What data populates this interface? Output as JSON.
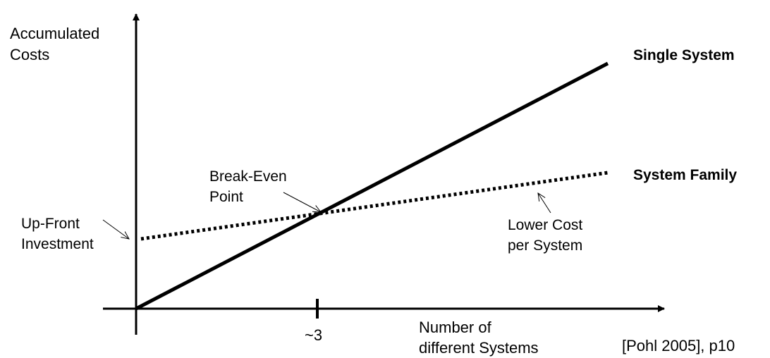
{
  "y_axis_label": [
    "Accumulated",
    "Costs"
  ],
  "x_axis_label": [
    "Number of",
    "different Systems"
  ],
  "x_tick_label": "~3",
  "series": [
    {
      "name": "Single System",
      "style": "solid",
      "color": "#000000"
    },
    {
      "name": "System Family",
      "style": "dotted",
      "color": "#000000"
    }
  ],
  "annotations": {
    "break_even": [
      "Break-Even",
      "Point"
    ],
    "up_front": [
      "Up-Front",
      "Investment"
    ],
    "lower_cost": [
      "Lower Cost",
      "per System"
    ]
  },
  "citation": "[Pohl 2005], p10"
}
